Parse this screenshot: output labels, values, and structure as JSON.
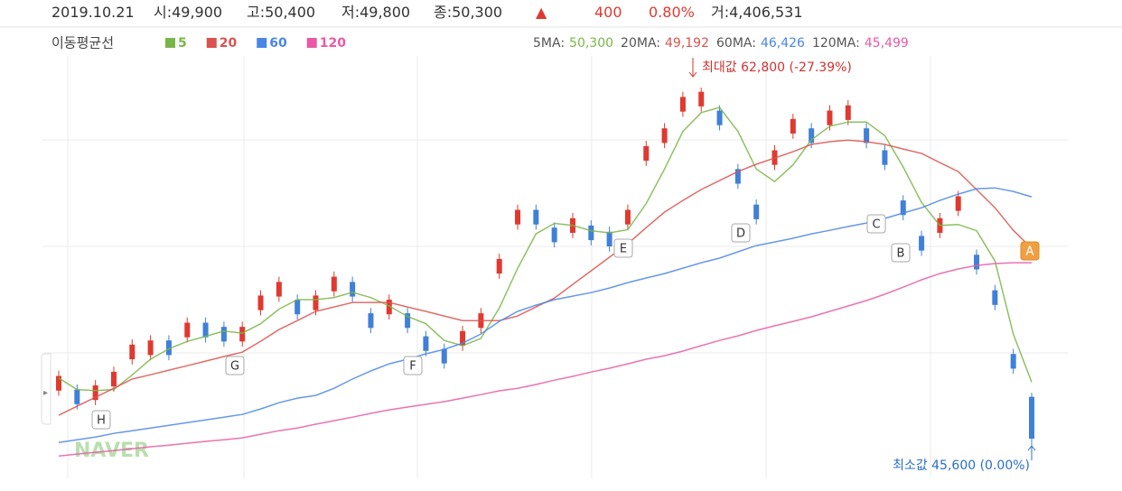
{
  "chart_data": {
    "type": "candlestick",
    "header": {
      "date": "2019.10.21",
      "open": "시:49,900",
      "high": "고:50,400",
      "low": "저:49,800",
      "close": "종:50,300",
      "change_sign": "▲",
      "change": "400",
      "change_pct": "0.80%",
      "volume": "거:4,406,531"
    },
    "legend_title": "이동평균선",
    "ma_labels": [
      {
        "label": "5MA:",
        "value": "50,300"
      },
      {
        "label": "20MA:",
        "value": "49,192"
      },
      {
        "label": "60MA:",
        "value": "46,426"
      },
      {
        "label": "120MA:",
        "value": "45,499"
      }
    ],
    "max_annotation": "최대값 62,800 (-27.39%)",
    "min_annotation": "최소값 45,600 (0.00%)",
    "watermark": "NAVER",
    "markers": [
      "H",
      "G",
      "F",
      "E",
      "D",
      "C",
      "B",
      "A"
    ],
    "ylim": [
      44100,
      65350
    ],
    "up_color": "#e0392f",
    "down_color": "#3f80d8",
    "open": [
      48300,
      48350,
      47850,
      48500,
      49800,
      50000,
      50700,
      50850,
      51550,
      51350,
      50650,
      52150,
      52800,
      52650,
      52150,
      53050,
      53500,
      52000,
      51950,
      52000,
      50900,
      50300,
      50450,
      51300,
      53900,
      56250,
      56950,
      56100,
      55850,
      56200,
      55900,
      56250,
      59300,
      60150,
      61650,
      61900,
      61700,
      58900,
      57200,
      59100,
      60600,
      60850,
      61000,
      61250,
      60850,
      59800,
      57400,
      55700,
      55850,
      56900,
      54800,
      53100,
      50050,
      48000
    ],
    "high": [
      49250,
      48600,
      48800,
      49450,
      50750,
      50950,
      50950,
      51800,
      51800,
      51600,
      51600,
      53100,
      53750,
      52900,
      53100,
      54000,
      53750,
      52250,
      52900,
      52250,
      51150,
      50550,
      51400,
      52250,
      54850,
      57200,
      57200,
      56350,
      56800,
      56450,
      56150,
      57200,
      60250,
      61100,
      62600,
      62800,
      61950,
      59150,
      57450,
      60050,
      61550,
      61100,
      61950,
      62200,
      61100,
      60050,
      57650,
      55950,
      56800,
      57850,
      55050,
      53350,
      50300,
      48200
    ],
    "low": [
      48050,
      47400,
      47600,
      48250,
      49550,
      49750,
      49750,
      50600,
      50600,
      50400,
      50400,
      51900,
      52550,
      51700,
      51900,
      52800,
      52550,
      51050,
      51700,
      51050,
      49950,
      49350,
      50200,
      51050,
      53650,
      56000,
      56000,
      55150,
      55600,
      55250,
      54950,
      56000,
      59050,
      59900,
      61400,
      61650,
      60750,
      57950,
      56250,
      58850,
      60350,
      59900,
      60750,
      61000,
      59900,
      58850,
      56450,
      54750,
      55600,
      56650,
      53850,
      52150,
      49100,
      45600
    ],
    "close": [
      49000,
      47650,
      48550,
      49200,
      50500,
      50700,
      50000,
      51550,
      50850,
      50650,
      51350,
      52850,
      53500,
      51950,
      52850,
      53750,
      52800,
      51300,
      52650,
      51300,
      50200,
      49600,
      51150,
      52000,
      54600,
      56950,
      56250,
      55400,
      56550,
      55500,
      55200,
      56950,
      60000,
      60850,
      62350,
      62600,
      61000,
      58200,
      56500,
      59800,
      61300,
      60150,
      61700,
      61950,
      60150,
      59100,
      56700,
      55000,
      56550,
      57600,
      54100,
      52400,
      49350,
      46000
    ],
    "series": [
      {
        "name": "5",
        "color": "#7ab648",
        "values": [
          48900,
          48350,
          48300,
          48350,
          49050,
          49800,
          50300,
          50650,
          50900,
          51150,
          51050,
          51500,
          52200,
          52650,
          52650,
          52750,
          53000,
          52750,
          52350,
          51850,
          51500,
          50700,
          50450,
          50800,
          52250,
          54150,
          55800,
          56300,
          56200,
          55950,
          55850,
          56000,
          57250,
          58900,
          60700,
          61600,
          61850,
          60700,
          58900,
          58300,
          59100,
          60300,
          60950,
          61150,
          61150,
          60500,
          59000,
          57300,
          56200,
          56250,
          55950,
          54500,
          51000,
          48700
        ]
      },
      {
        "name": "20",
        "color": "#d9534f",
        "values": [
          47120,
          47550,
          47980,
          48410,
          48850,
          49060,
          49280,
          49490,
          49710,
          49930,
          50140,
          50660,
          51220,
          51650,
          52090,
          52300,
          52520,
          52520,
          52520,
          52300,
          52090,
          51870,
          51650,
          51650,
          51650,
          51870,
          52300,
          52730,
          53380,
          54030,
          54680,
          55330,
          56100,
          56840,
          57400,
          57920,
          58350,
          58780,
          59130,
          59430,
          59730,
          60080,
          60210,
          60290,
          60210,
          60080,
          59860,
          59650,
          59210,
          58780,
          57920,
          57050,
          55970,
          55110
        ]
      },
      {
        "name": "60",
        "color": "#4a86e8",
        "values": [
          45820,
          45950,
          46080,
          46250,
          46380,
          46510,
          46640,
          46770,
          46900,
          47030,
          47160,
          47420,
          47720,
          47940,
          48070,
          48410,
          48850,
          49240,
          49580,
          49800,
          50060,
          50270,
          50570,
          51010,
          51610,
          52090,
          52390,
          52650,
          52820,
          52990,
          53210,
          53470,
          53690,
          53900,
          54160,
          54420,
          54640,
          54940,
          55240,
          55410,
          55590,
          55800,
          55970,
          56150,
          56320,
          56540,
          56800,
          57050,
          57400,
          57700,
          57960,
          58000,
          57830,
          57570
        ]
      },
      {
        "name": "120",
        "color": "#e85aa5",
        "values": [
          45170,
          45260,
          45350,
          45430,
          45520,
          45610,
          45690,
          45780,
          45870,
          45950,
          46040,
          46210,
          46380,
          46510,
          46690,
          46860,
          47030,
          47210,
          47380,
          47510,
          47640,
          47770,
          47940,
          48110,
          48290,
          48410,
          48590,
          48800,
          48980,
          49190,
          49370,
          49580,
          49800,
          49970,
          50190,
          50450,
          50700,
          50920,
          51180,
          51400,
          51610,
          51830,
          52090,
          52350,
          52610,
          52910,
          53250,
          53600,
          53900,
          54120,
          54290,
          54380,
          54420,
          54420
        ]
      }
    ]
  }
}
